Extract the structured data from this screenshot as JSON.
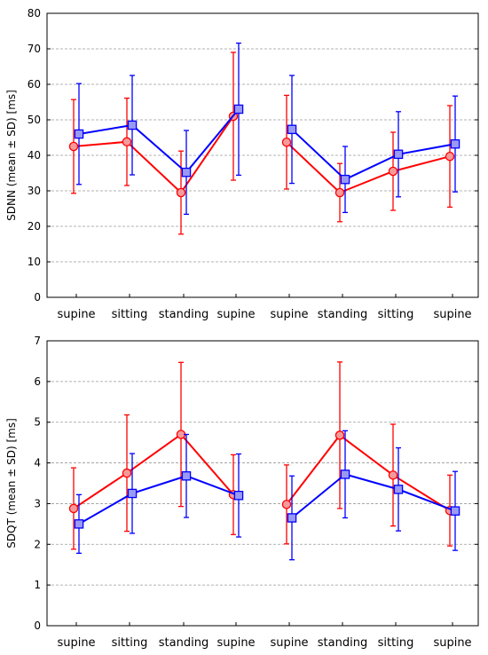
{
  "chart_data": [
    {
      "type": "line",
      "ylabel": "SDNN (mean ± SD) [ms]",
      "categories": [
        "supine",
        "sitting",
        "standing",
        "supine",
        "supine",
        "standing",
        "sitting",
        "supine"
      ],
      "groups": [
        [
          0,
          1,
          2,
          3
        ],
        [
          4,
          5,
          6,
          7
        ]
      ],
      "ylim": [
        0,
        80
      ],
      "yticks": [
        0,
        10,
        20,
        30,
        40,
        50,
        60,
        70,
        80
      ],
      "grid": true,
      "series": [
        {
          "color": "#ff0000",
          "marker": "circle",
          "values": [
            42.5,
            43.8,
            29.5,
            51.0,
            43.7,
            29.5,
            35.5,
            39.7
          ],
          "err": [
            13.2,
            12.3,
            11.7,
            18.0,
            13.2,
            8.2,
            11.0,
            14.3
          ]
        },
        {
          "color": "#0000ff",
          "marker": "square",
          "values": [
            46.0,
            48.5,
            35.2,
            53.0,
            47.3,
            33.2,
            40.3,
            43.2
          ],
          "err": [
            14.2,
            14.0,
            11.8,
            18.6,
            15.2,
            9.3,
            12.0,
            13.5
          ]
        }
      ]
    },
    {
      "type": "line",
      "ylabel": "SDQT (mean ± SD) [ms]",
      "categories": [
        "supine",
        "sitting",
        "standing",
        "supine",
        "supine",
        "standing",
        "sitting",
        "supine"
      ],
      "groups": [
        [
          0,
          1,
          2,
          3
        ],
        [
          4,
          5,
          6,
          7
        ]
      ],
      "ylim": [
        0,
        7
      ],
      "yticks": [
        0,
        1,
        2,
        3,
        4,
        5,
        6,
        7
      ],
      "grid": true,
      "series": [
        {
          "color": "#ff0000",
          "marker": "circle",
          "values": [
            2.88,
            3.75,
            4.7,
            3.22,
            2.98,
            4.68,
            3.7,
            2.83
          ],
          "err": [
            1.0,
            1.43,
            1.77,
            0.98,
            0.97,
            1.8,
            1.25,
            0.87
          ]
        },
        {
          "color": "#0000ff",
          "marker": "square",
          "values": [
            2.5,
            3.25,
            3.68,
            3.2,
            2.65,
            3.72,
            3.35,
            2.82
          ],
          "err": [
            0.72,
            0.98,
            1.02,
            1.02,
            1.03,
            1.07,
            1.02,
            0.97
          ]
        }
      ]
    }
  ]
}
